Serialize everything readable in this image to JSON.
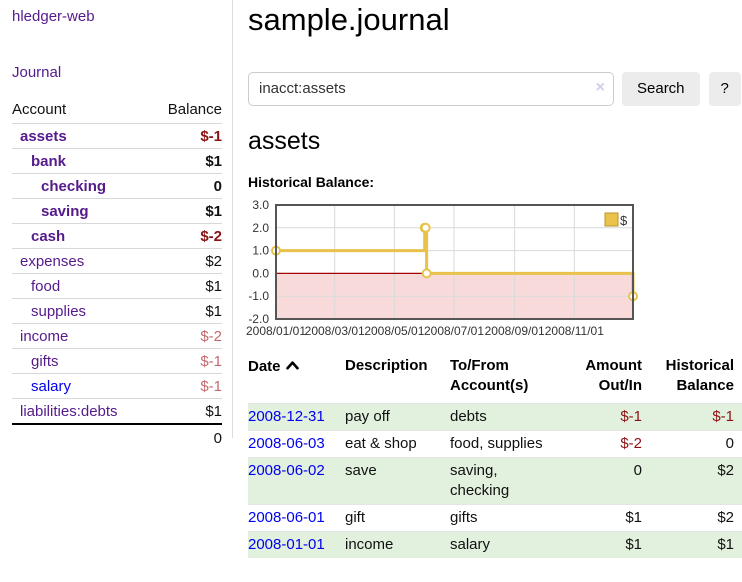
{
  "app": {
    "brand": "hledger-web",
    "nav_journal": "Journal"
  },
  "colors": {
    "link-purple": "#551a8b",
    "link-blue": "#0000ee",
    "neg-strong": "#8b1212",
    "neg-muted": "#c46a6e",
    "row-green": "#e2f0de",
    "button-bg": "#ececec",
    "border-gray": "#cccccc"
  },
  "sidebar": {
    "col_account": "Account",
    "col_balance": "Balance",
    "accounts": [
      {
        "name": "assets",
        "indent": 1,
        "balance": "$-1",
        "bold": true,
        "blue": false
      },
      {
        "name": "bank",
        "indent": 2,
        "balance": "$1",
        "bold": true,
        "blue": false
      },
      {
        "name": "checking",
        "indent": 3,
        "balance": "0",
        "bold": true,
        "blue": false
      },
      {
        "name": "saving",
        "indent": 3,
        "balance": "$1",
        "bold": true,
        "blue": false
      },
      {
        "name": "cash",
        "indent": 2,
        "balance": "$-2",
        "bold": true,
        "blue": false
      },
      {
        "name": "expenses",
        "indent": 1,
        "balance": "$2",
        "bold": false,
        "blue": false
      },
      {
        "name": "food",
        "indent": 2,
        "balance": "$1",
        "bold": false,
        "blue": false
      },
      {
        "name": "supplies",
        "indent": 2,
        "balance": "$1",
        "bold": false,
        "blue": false
      },
      {
        "name": "income",
        "indent": 1,
        "balance": "$-2",
        "bold": false,
        "blue": false
      },
      {
        "name": "gifts",
        "indent": 2,
        "balance": "$-1",
        "bold": false,
        "blue": false
      },
      {
        "name": "salary",
        "indent": 2,
        "balance": "$-1",
        "bold": false,
        "blue": true
      },
      {
        "name": "liabilities:debts",
        "indent": 1,
        "balance": "$1",
        "bold": false,
        "blue": false
      }
    ],
    "total": "0"
  },
  "header": {
    "title": "sample.journal"
  },
  "search": {
    "value": "inacct:assets",
    "clear_glyph": "×",
    "clear_icon": "clear-search-icon",
    "button_label": "Search",
    "help_label": "?"
  },
  "account_page": {
    "heading": "assets",
    "chart_label": "Historical Balance:"
  },
  "chart_data": {
    "type": "line",
    "variant": "step-after",
    "title": "Historical Balance:",
    "legend": {
      "label": "$",
      "position": "top-right"
    },
    "x_domain": [
      "2008-01-01",
      "2008-12-31"
    ],
    "ylim": [
      -2.0,
      3.0
    ],
    "grid": true,
    "yticks": [
      {
        "value": 3,
        "label": "3.0"
      },
      {
        "value": 2,
        "label": "2.0"
      },
      {
        "value": 1,
        "label": "1.0"
      },
      {
        "value": 0,
        "label": "0.0"
      },
      {
        "value": -1,
        "label": "-1.0"
      },
      {
        "value": -2,
        "label": "-2.0"
      }
    ],
    "xticks": [
      {
        "date": "2008-01-01",
        "label": "2008/01/01"
      },
      {
        "date": "2008-03-01",
        "label": "2008/03/01"
      },
      {
        "date": "2008-05-01",
        "label": "2008/05/01"
      },
      {
        "date": "2008-07-01",
        "label": "2008/07/01"
      },
      {
        "date": "2008-09-01",
        "label": "2008/09/01"
      },
      {
        "date": "2008-11-01",
        "label": "2008/11/01"
      }
    ],
    "series": [
      {
        "name": "$",
        "color": "#e8c24a",
        "points": [
          {
            "date": "2008-01-01",
            "value": 1
          },
          {
            "date": "2008-06-01",
            "value": 2
          },
          {
            "date": "2008-06-02",
            "value": 2
          },
          {
            "date": "2008-06-03",
            "value": 0
          },
          {
            "date": "2008-12-31",
            "value": -1
          }
        ]
      }
    ],
    "colors": {
      "negative_region": "#f9dada",
      "zero_line": "#a40000",
      "grid": "#d9d9d9",
      "frame": "#555555",
      "tick_text": "#333333",
      "legend_fill": "#eac34b",
      "legend_border": "#b8952e"
    }
  },
  "register": {
    "columns": [
      "Date",
      "Description",
      "To/From Account(s)",
      "Amount Out/In",
      "Historical Balance"
    ],
    "sort_icon": "chevron-up",
    "rows": [
      {
        "date": "2008-12-31",
        "description": "pay off",
        "accounts": "debts",
        "amount": "$-1",
        "balance": "$-1"
      },
      {
        "date": "2008-06-03",
        "description": "eat & shop",
        "accounts": "food, supplies",
        "amount": "$-2",
        "balance": "0"
      },
      {
        "date": "2008-06-02",
        "description": "save",
        "accounts": "saving, checking",
        "amount": "0",
        "balance": "$2"
      },
      {
        "date": "2008-06-01",
        "description": "gift",
        "accounts": "gifts",
        "amount": "$1",
        "balance": "$2"
      },
      {
        "date": "2008-01-01",
        "description": "income",
        "accounts": "salary",
        "amount": "$1",
        "balance": "$1"
      }
    ]
  }
}
